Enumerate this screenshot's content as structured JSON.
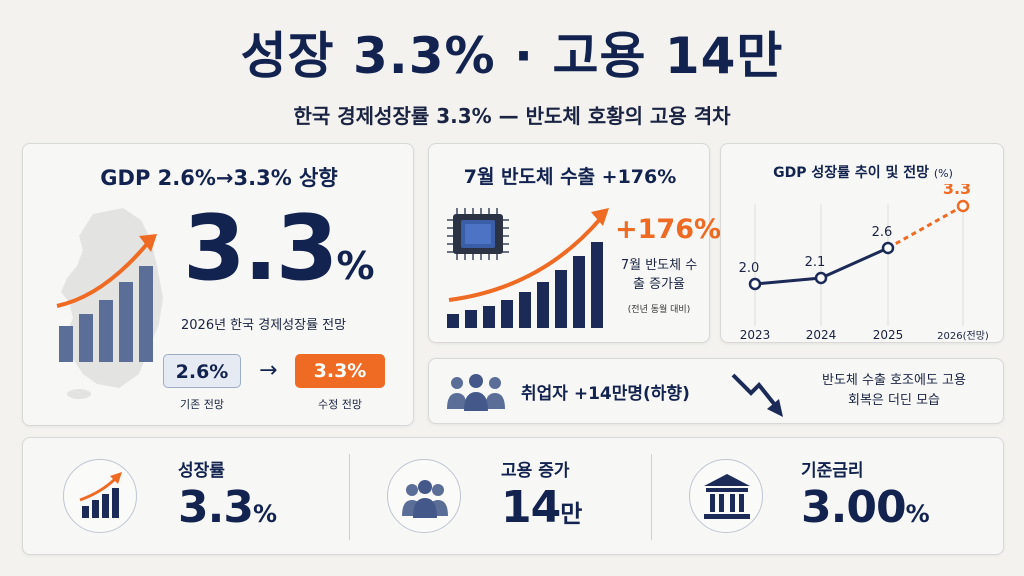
{
  "header": {
    "title": "성장 3.3% · 고용 14만",
    "subtitle": "한국 경제성장률 3.3% — 반도체 호황의 고용 격차"
  },
  "gdp_card": {
    "heading": "GDP 2.6%→3.3% 상향",
    "big_value": "3.3",
    "big_unit": "%",
    "description": "2026년 한국 경제성장률 전망",
    "old_value": "2.6%",
    "old_caption": "기존 전망",
    "arrow": "→",
    "new_value": "3.3%",
    "new_caption": "수정 전망"
  },
  "export_card": {
    "heading": "7월 반도체 수출 +176%",
    "value": "+176%",
    "label": "7월 반도체 수출 증가율",
    "note": "(전년 동월 대비)"
  },
  "trend_card": {
    "heading": "GDP 성장률 추이 및 전망",
    "unit": "(%)"
  },
  "chart_data": {
    "type": "line",
    "title": "GDP 성장률 추이 및 전망 (%)",
    "categories": [
      "2023",
      "2024",
      "2025",
      "2026(전망)"
    ],
    "values": [
      2.0,
      2.1,
      2.6,
      3.3
    ],
    "data_labels": [
      "2.0",
      "2.1",
      "2.6",
      "3.3"
    ],
    "forecast_index": 3,
    "colors": {
      "actual": "#1b2a57",
      "forecast": "#ef6a22"
    },
    "grid": false
  },
  "employment_card": {
    "label": "취업자 +14만명(하향)",
    "note": "반도체 수출 호조에도 고용 회복은 더딘 모습"
  },
  "stats": [
    {
      "label": "성장률",
      "value": "3.3",
      "unit": "%",
      "icon": "growth-chart-icon"
    },
    {
      "label": "고용 증가",
      "value": "14",
      "unit": "만",
      "icon": "people-icon"
    },
    {
      "label": "기준금리",
      "value": "3.00",
      "unit": "%",
      "icon": "bank-icon"
    }
  ],
  "colors": {
    "navy": "#13234f",
    "accent": "#ef6a22",
    "background": "#f3f2ef"
  }
}
